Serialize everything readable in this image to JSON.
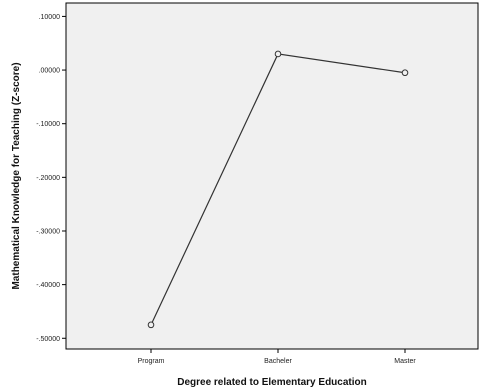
{
  "chart_data": {
    "type": "line",
    "title": "",
    "xlabel": "Degree related to Elementary Education",
    "ylabel": "Mathematical Knowledge for Teaching (Z-score)",
    "categories": [
      "Program",
      "Bacheler",
      "Master"
    ],
    "values": [
      -0.475,
      0.03,
      -0.005
    ],
    "y_ticks": [
      0.1,
      0.0,
      -0.1,
      -0.2,
      -0.3,
      -0.4,
      -0.5
    ],
    "y_tick_labels": [
      ".10000",
      ".00000",
      "-.10000",
      "-.20000",
      "-.30000",
      "-.40000",
      "-.50000"
    ],
    "ylim": [
      -0.52,
      0.125
    ],
    "grid": false,
    "legend": "none",
    "colors": {
      "plot_background": "#f0f0f0",
      "line": "#333333",
      "frame": "#000000"
    }
  }
}
